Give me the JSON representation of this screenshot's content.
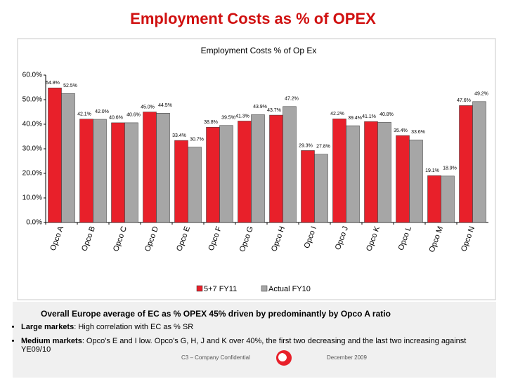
{
  "header": {
    "title": "Employment Costs as % of OPEX"
  },
  "chart_data": {
    "type": "bar",
    "title": "Employment Costs % of Op Ex",
    "categories": [
      "Opco A",
      "Opco B",
      "Opco C",
      "Opco D",
      "Opco E",
      "Opco F",
      "Opco G",
      "Opco H",
      "Opco I",
      "Opco J",
      "Opco K",
      "Opco L",
      "Opco M",
      "Opco N"
    ],
    "series": [
      {
        "name": "5+7 FY11",
        "color": "#e8202a",
        "values": [
          54.8,
          42.1,
          40.6,
          45.0,
          33.4,
          38.8,
          41.3,
          43.7,
          29.3,
          42.2,
          41.1,
          35.4,
          19.1,
          47.6
        ],
        "value_labels": [
          "54.8%",
          "42.1%",
          "40.6%",
          "45.0%",
          "33.4%",
          "38.8%",
          "41.3%",
          "43.7%",
          "29.3%",
          "42.2%",
          "41.1%",
          "35.4%",
          "19.1%",
          "47.6%"
        ]
      },
      {
        "name": "Actual FY10",
        "color": "#a6a6a6",
        "values": [
          52.5,
          42.0,
          40.6,
          44.5,
          30.7,
          39.5,
          43.9,
          47.2,
          27.8,
          39.4,
          40.8,
          33.6,
          18.9,
          49.2
        ],
        "value_labels": [
          "52.5%",
          "42.0%",
          "40.6%",
          "44.5%",
          "30.7%",
          "39.5%",
          "43.9%",
          "47.2%",
          "27.8%",
          "39.4%",
          "40.8%",
          "33.6%",
          "18.9%",
          "49.2%"
        ]
      }
    ],
    "ylim": [
      0,
      60
    ],
    "yticks": [
      {
        "value": 0,
        "label": "0.0%"
      },
      {
        "value": 10,
        "label": "10.0%"
      },
      {
        "value": 20,
        "label": "20.0%"
      },
      {
        "value": 30,
        "label": "30.0%"
      },
      {
        "value": 40,
        "label": "40.0%"
      },
      {
        "value": 50,
        "label": "50.0%"
      },
      {
        "value": 60,
        "label": "60.0%"
      }
    ],
    "legend": "bottom"
  },
  "notes": {
    "summary": "Overall Europe average of EC as % OPEX 45% driven by predominantly by Opco A ratio",
    "bullets": [
      {
        "label": "Large markets",
        "text": ": High correlation with EC as % SR"
      },
      {
        "label": "Medium markets",
        "text": ": Opco's E and I low. Opco's G, H, J and K over 40%, the first two decreasing and the last two increasing against YE09/10"
      }
    ]
  },
  "footer": {
    "left": "C3 – Company Confidential",
    "right": "December 2009"
  }
}
